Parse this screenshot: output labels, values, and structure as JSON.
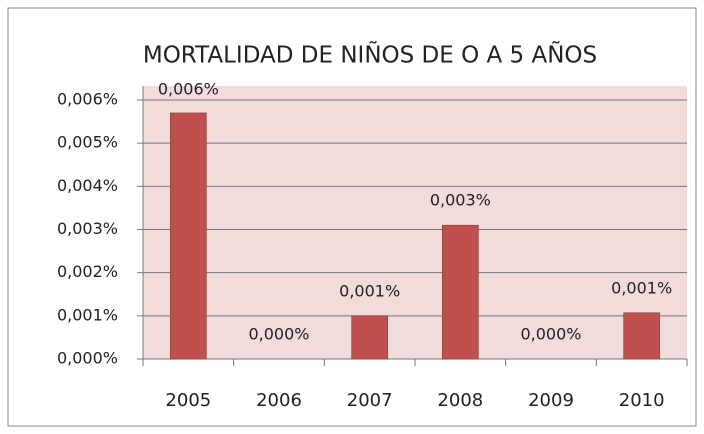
{
  "chart_data": {
    "type": "bar",
    "title": "MORTALIDAD DE NIÑOS DE O A 5 AÑOS",
    "categories": [
      "2005",
      "2006",
      "2007",
      "2008",
      "2009",
      "2010"
    ],
    "values": [
      0.0057,
      0,
      0.001,
      0.0031,
      0,
      0.00107
    ],
    "value_labels": [
      "0,006%",
      "0,000%",
      "0,001%",
      "0,003%",
      "0,000%",
      "0,001%"
    ],
    "color": "#c0504d",
    "ylim": [
      0,
      0.006
    ],
    "yticks": [
      {
        "value": 0,
        "label": "0,000%"
      },
      {
        "value": 0.001,
        "label": "0,001%"
      },
      {
        "value": 0.002,
        "label": "0,002%"
      },
      {
        "value": 0.003,
        "label": "0,003%"
      },
      {
        "value": 0.004,
        "label": "0,004%"
      },
      {
        "value": 0.005,
        "label": "0,005%"
      },
      {
        "value": 0.006,
        "label": "0,006%"
      }
    ],
    "grid": true
  }
}
